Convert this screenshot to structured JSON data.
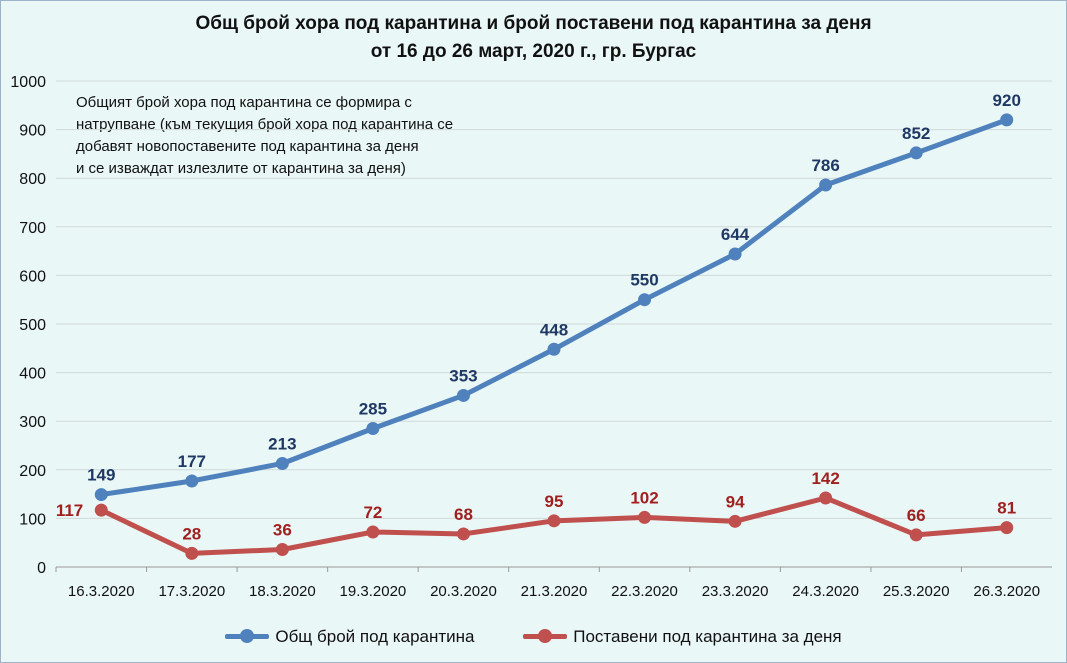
{
  "title": {
    "line1": "Общ брой хора под карантина и брой поставени под карантина за деня",
    "line2": "от 16 до 26 март, 2020 г., гр. Бургас"
  },
  "note": {
    "line1": "Общият брой хора под карантина се формира с",
    "line2": "натрупване (към текущия брой хора под карантина се",
    "line3": "добавят новопоставените под карантина за деня",
    "line4": "и се изваждат излезлите от карантина за деня)"
  },
  "legend": {
    "total_label": "Общ брой под карантина",
    "daily_label": "Поставени  под карантина за деня"
  },
  "chart_data": {
    "type": "line",
    "categories": [
      "16.3.2020",
      "17.3.2020",
      "18.3.2020",
      "19.3.2020",
      "20.3.2020",
      "21.3.2020",
      "22.3.2020",
      "23.3.2020",
      "24.3.2020",
      "25.3.2020",
      "26.3.2020"
    ],
    "series": [
      {
        "name": "Общ брой под карантина",
        "values": [
          149,
          177,
          213,
          285,
          353,
          448,
          550,
          644,
          786,
          852,
          920
        ],
        "color": "#4f81bd",
        "label_color": "#1f3864"
      },
      {
        "name": "Поставени  под карантина за деня",
        "values": [
          117,
          28,
          36,
          72,
          68,
          95,
          102,
          94,
          142,
          66,
          81
        ],
        "color": "#c0504d",
        "label_color": "#a02020"
      }
    ],
    "yticks": [
      "0",
      "100",
      "200",
      "300",
      "400",
      "500",
      "600",
      "700",
      "800",
      "900",
      "1000"
    ],
    "ylim": [
      0,
      1000
    ],
    "grid": true,
    "legend_position": "bottom"
  }
}
